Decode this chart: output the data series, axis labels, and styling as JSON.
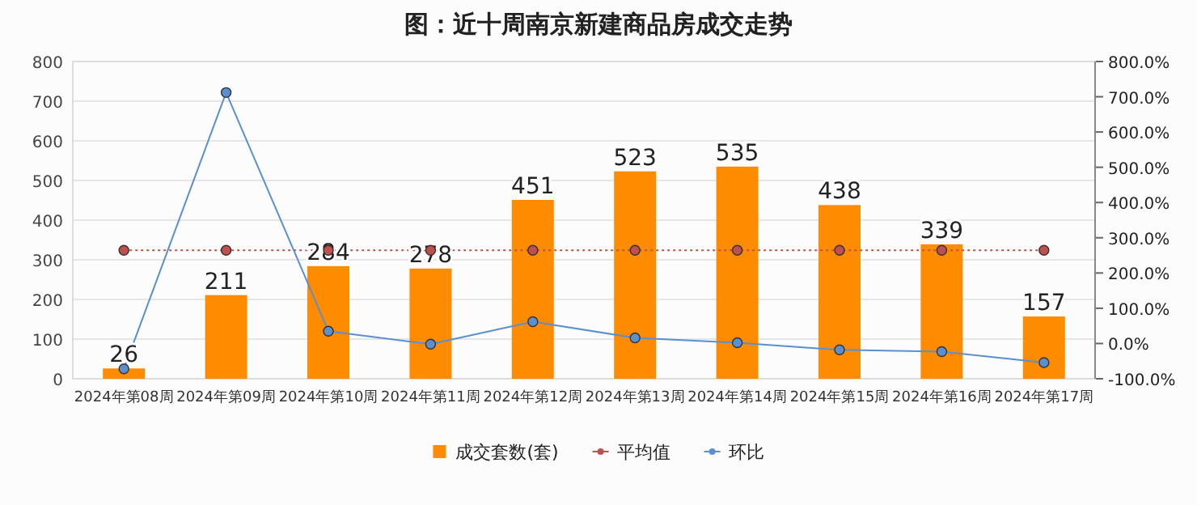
{
  "chart_data": {
    "type": "bar",
    "title": "图：近十周南京新建商品房成交走势",
    "categories": [
      "2024年第08周",
      "2024年第09周",
      "2024年第10周",
      "2024年第11周",
      "2024年第12周",
      "2024年第13周",
      "2024年第14周",
      "2024年第15周",
      "2024年第16周",
      "2024年第17周"
    ],
    "series": [
      {
        "name": "成交套数(套)",
        "color": "#ff8c00",
        "values": [
          26,
          211,
          284,
          278,
          451,
          523,
          535,
          438,
          339,
          157
        ],
        "value_labels": [
          "26",
          "211",
          "284",
          "278",
          "451",
          "523",
          "535",
          "438",
          "339",
          "157"
        ]
      },
      {
        "name": "平均值",
        "type": "line",
        "color": "#c0504d",
        "line_style": "dotted",
        "marker": "circle",
        "values": [
          324,
          324,
          324,
          324,
          324,
          324,
          324,
          324,
          324,
          324
        ]
      },
      {
        "name": "环比",
        "type": "line",
        "axis": "y2",
        "color": "#5b8fd0",
        "marker": "circle",
        "values": [
          -72,
          712,
          35,
          -2,
          62,
          16,
          2,
          -18,
          -23,
          -54
        ]
      }
    ],
    "ylim": [
      0,
      800
    ],
    "yticks": [
      0,
      100,
      200,
      300,
      400,
      500,
      600,
      700,
      800
    ],
    "y2lim": [
      -100,
      800
    ],
    "y2ticks": [
      {
        "value": -100,
        "label": "-100.0%"
      },
      {
        "value": 0,
        "label": "0.0%"
      },
      {
        "value": 100,
        "label": "100.0%"
      },
      {
        "value": 200,
        "label": "200.0%"
      },
      {
        "value": 300,
        "label": "300.0%"
      },
      {
        "value": 400,
        "label": "400.0%"
      },
      {
        "value": 500,
        "label": "500.0%"
      },
      {
        "value": 600,
        "label": "600.0%"
      },
      {
        "value": 700,
        "label": "700.0%"
      },
      {
        "value": 800,
        "label": "800.0%"
      }
    ],
    "grid": "y",
    "legend": "bottom"
  }
}
